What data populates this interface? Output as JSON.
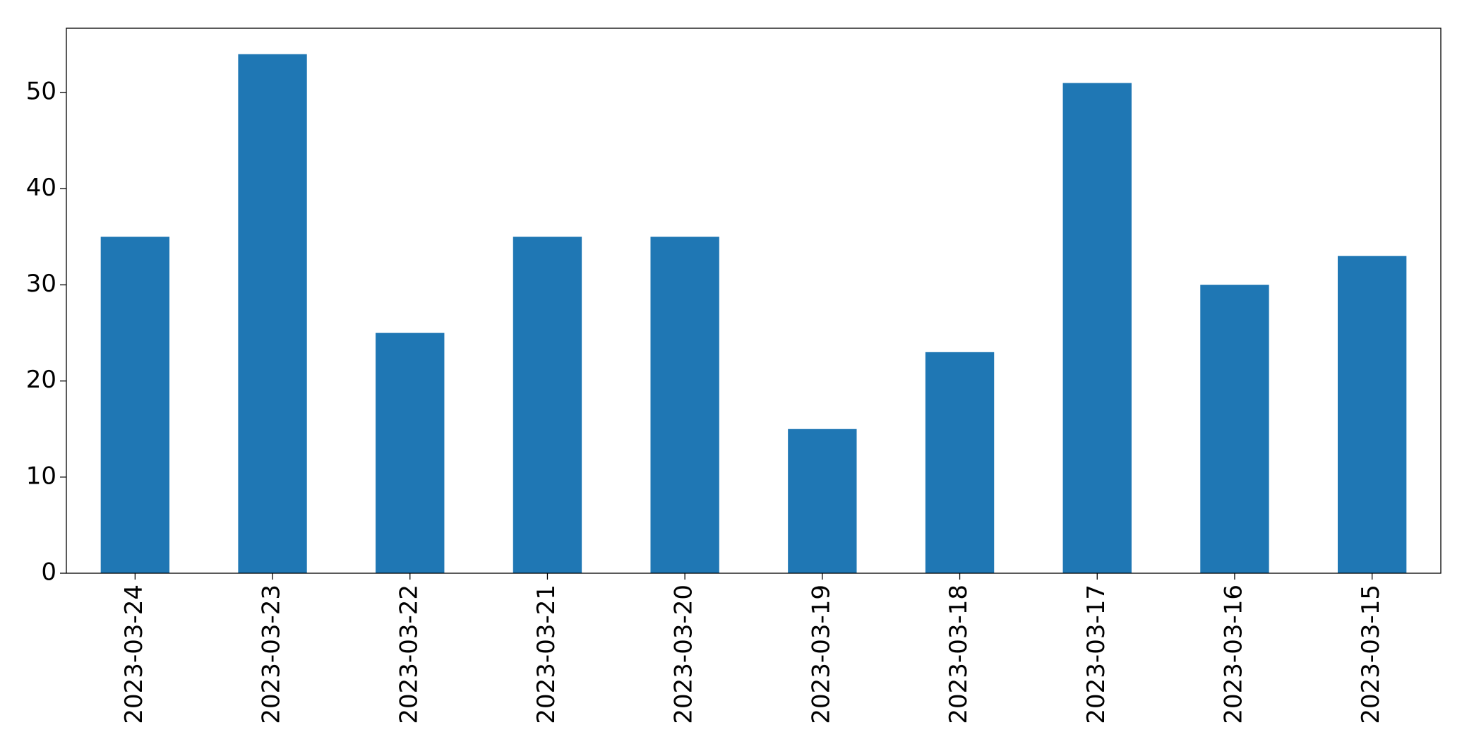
{
  "chart_data": {
    "type": "bar",
    "categories": [
      "2023-03-24",
      "2023-03-23",
      "2023-03-22",
      "2023-03-21",
      "2023-03-20",
      "2023-03-19",
      "2023-03-18",
      "2023-03-17",
      "2023-03-16",
      "2023-03-15"
    ],
    "values": [
      35,
      54,
      25,
      35,
      35,
      15,
      23,
      51,
      30,
      33
    ],
    "color": "#1f77b4",
    "ylim": [
      0,
      56.7
    ],
    "yticks": [
      0,
      10,
      20,
      30,
      40,
      50
    ],
    "grid": false
  }
}
